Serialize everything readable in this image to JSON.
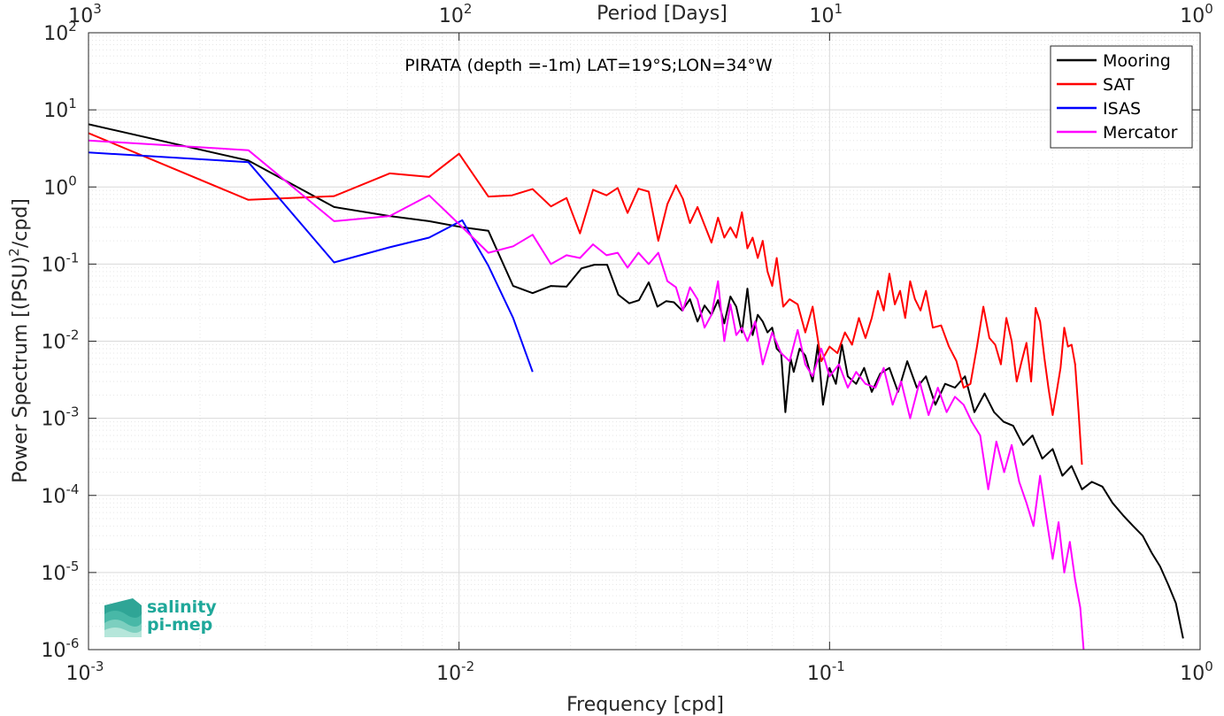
{
  "chart_data": {
    "type": "line",
    "title": "PIRATA (depth =-1m) LAT=19°S;LON=34°W",
    "xlabel": "Frequency [cpd]",
    "ylabel": "Power Spectrum [(PSU)²/cpd]",
    "top_xlabel": "Period [Days]",
    "x_scale": "log",
    "y_scale": "log",
    "xlim": [
      0.001,
      1
    ],
    "ylim": [
      1e-06,
      100
    ],
    "grid": true,
    "legend_position": "top-right",
    "x_ticks": [
      0.001,
      0.01,
      0.1,
      1
    ],
    "x_tick_labels": [
      {
        "base": "10",
        "exp": "-3"
      },
      {
        "base": "10",
        "exp": "-2"
      },
      {
        "base": "10",
        "exp": "-1"
      },
      {
        "base": "10",
        "exp": "0"
      }
    ],
    "top_x_tick_labels": [
      {
        "base": "10",
        "exp": "3"
      },
      {
        "base": "10",
        "exp": "2"
      },
      {
        "base": "10",
        "exp": "1"
      },
      {
        "base": "10",
        "exp": "0"
      }
    ],
    "y_ticks": [
      1e-06,
      1e-05,
      0.0001,
      0.001,
      0.01,
      0.1,
      1,
      10,
      100
    ],
    "y_tick_labels": [
      {
        "base": "10",
        "exp": "-6"
      },
      {
        "base": "10",
        "exp": "-5"
      },
      {
        "base": "10",
        "exp": "-4"
      },
      {
        "base": "10",
        "exp": "-3"
      },
      {
        "base": "10",
        "exp": "-2"
      },
      {
        "base": "10",
        "exp": "-1"
      },
      {
        "base": "10",
        "exp": "0"
      },
      {
        "base": "10",
        "exp": "1"
      },
      {
        "base": "10",
        "exp": "2"
      }
    ],
    "series": [
      {
        "name": "Mooring",
        "color": "#000000",
        "x": [
          0.001,
          0.0027,
          0.0046,
          0.0065,
          0.0083,
          0.0102,
          0.012,
          0.014,
          0.0158,
          0.0177,
          0.0195,
          0.0214,
          0.0232,
          0.0251,
          0.0269,
          0.0288,
          0.0306,
          0.0325,
          0.0343,
          0.0362,
          0.038,
          0.04,
          0.042,
          0.044,
          0.046,
          0.048,
          0.05,
          0.052,
          0.054,
          0.056,
          0.058,
          0.06,
          0.062,
          0.064,
          0.066,
          0.068,
          0.07,
          0.072,
          0.074,
          0.076,
          0.0785,
          0.08,
          0.083,
          0.086,
          0.09,
          0.093,
          0.096,
          0.1,
          0.104,
          0.108,
          0.112,
          0.118,
          0.124,
          0.13,
          0.137,
          0.145,
          0.153,
          0.162,
          0.172,
          0.182,
          0.193,
          0.205,
          0.218,
          0.232,
          0.246,
          0.262,
          0.278,
          0.295,
          0.313,
          0.333,
          0.353,
          0.375,
          0.4,
          0.425,
          0.45,
          0.48,
          0.51,
          0.545,
          0.58,
          0.62,
          0.66,
          0.7,
          0.74,
          0.78,
          0.82,
          0.86,
          0.9
        ],
        "y": [
          6.5,
          2.2,
          0.55,
          0.42,
          0.36,
          0.3,
          0.27,
          0.052,
          0.042,
          0.052,
          0.051,
          0.088,
          0.098,
          0.098,
          0.04,
          0.031,
          0.034,
          0.058,
          0.028,
          0.033,
          0.032,
          0.025,
          0.035,
          0.018,
          0.029,
          0.022,
          0.034,
          0.017,
          0.038,
          0.028,
          0.013,
          0.048,
          0.012,
          0.022,
          0.018,
          0.013,
          0.015,
          0.008,
          0.007,
          0.0012,
          0.006,
          0.004,
          0.008,
          0.0065,
          0.003,
          0.009,
          0.0015,
          0.0045,
          0.0028,
          0.009,
          0.0035,
          0.0028,
          0.0045,
          0.0022,
          0.0038,
          0.0045,
          0.0022,
          0.0055,
          0.0025,
          0.0035,
          0.0015,
          0.0028,
          0.0025,
          0.0035,
          0.0012,
          0.0021,
          0.0012,
          0.0009,
          0.0008,
          0.00045,
          0.0006,
          0.0003,
          0.0004,
          0.00018,
          0.00024,
          0.00012,
          0.00015,
          0.00013,
          8e-05,
          5.5e-05,
          4e-05,
          3e-05,
          1.8e-05,
          1.2e-05,
          7e-06,
          4e-06,
          1.4e-06
        ]
      },
      {
        "name": "SAT",
        "color": "#ff0000",
        "x": [
          0.001,
          0.0027,
          0.0046,
          0.0065,
          0.0083,
          0.01,
          0.012,
          0.0139,
          0.0158,
          0.0177,
          0.0195,
          0.0212,
          0.023,
          0.025,
          0.0268,
          0.0285,
          0.0305,
          0.0325,
          0.0345,
          0.0365,
          0.0385,
          0.0402,
          0.042,
          0.044,
          0.046,
          0.048,
          0.05,
          0.052,
          0.054,
          0.056,
          0.058,
          0.06,
          0.062,
          0.064,
          0.066,
          0.068,
          0.07,
          0.072,
          0.075,
          0.078,
          0.082,
          0.086,
          0.09,
          0.095,
          0.1,
          0.105,
          0.11,
          0.115,
          0.12,
          0.125,
          0.13,
          0.135,
          0.14,
          0.145,
          0.15,
          0.155,
          0.16,
          0.165,
          0.17,
          0.176,
          0.182,
          0.19,
          0.2,
          0.21,
          0.22,
          0.23,
          0.24,
          0.25,
          0.26,
          0.27,
          0.28,
          0.29,
          0.3,
          0.31,
          0.32,
          0.33,
          0.34,
          0.35,
          0.36,
          0.37,
          0.38,
          0.39,
          0.4,
          0.41,
          0.42,
          0.43,
          0.44,
          0.45,
          0.46,
          0.47,
          0.48
        ],
        "y": [
          5.0,
          0.68,
          0.76,
          1.5,
          1.35,
          2.7,
          0.75,
          0.78,
          0.94,
          0.56,
          0.72,
          0.25,
          0.92,
          0.78,
          0.97,
          0.46,
          0.95,
          0.87,
          0.2,
          0.6,
          1.05,
          0.7,
          0.34,
          0.55,
          0.32,
          0.19,
          0.4,
          0.22,
          0.3,
          0.22,
          0.47,
          0.16,
          0.22,
          0.12,
          0.2,
          0.08,
          0.052,
          0.12,
          0.028,
          0.035,
          0.03,
          0.013,
          0.028,
          0.0055,
          0.0085,
          0.007,
          0.013,
          0.009,
          0.02,
          0.011,
          0.02,
          0.045,
          0.025,
          0.075,
          0.03,
          0.045,
          0.02,
          0.06,
          0.035,
          0.025,
          0.045,
          0.015,
          0.016,
          0.0085,
          0.0055,
          0.0025,
          0.0028,
          0.0085,
          0.028,
          0.011,
          0.009,
          0.005,
          0.02,
          0.01,
          0.003,
          0.0055,
          0.0095,
          0.003,
          0.027,
          0.018,
          0.006,
          0.0024,
          0.0011,
          0.0022,
          0.0045,
          0.015,
          0.0085,
          0.009,
          0.005,
          0.0012,
          0.00025
        ]
      },
      {
        "name": "ISAS",
        "color": "#0000ff",
        "x": [
          0.001,
          0.0027,
          0.0046,
          0.0065,
          0.0083,
          0.0102,
          0.012,
          0.014,
          0.0158
        ],
        "y": [
          2.8,
          2.1,
          0.105,
          0.165,
          0.22,
          0.37,
          0.095,
          0.02,
          0.004
        ]
      },
      {
        "name": "Mercator",
        "color": "#ff00ff",
        "x": [
          0.001,
          0.0027,
          0.0046,
          0.0065,
          0.0083,
          0.01,
          0.012,
          0.014,
          0.0158,
          0.0177,
          0.0195,
          0.0212,
          0.023,
          0.025,
          0.0268,
          0.0285,
          0.0305,
          0.0325,
          0.0345,
          0.0365,
          0.0385,
          0.0402,
          0.042,
          0.044,
          0.046,
          0.048,
          0.05,
          0.052,
          0.054,
          0.056,
          0.058,
          0.06,
          0.063,
          0.066,
          0.07,
          0.074,
          0.078,
          0.082,
          0.086,
          0.09,
          0.095,
          0.1,
          0.106,
          0.112,
          0.118,
          0.125,
          0.133,
          0.14,
          0.148,
          0.156,
          0.165,
          0.175,
          0.185,
          0.196,
          0.207,
          0.218,
          0.23,
          0.242,
          0.255,
          0.268,
          0.282,
          0.296,
          0.31,
          0.325,
          0.34,
          0.355,
          0.37,
          0.385,
          0.4,
          0.415,
          0.43,
          0.445,
          0.46,
          0.475,
          0.485
        ],
        "y": [
          4.0,
          3.0,
          0.36,
          0.42,
          0.78,
          0.33,
          0.14,
          0.17,
          0.24,
          0.1,
          0.13,
          0.12,
          0.18,
          0.13,
          0.14,
          0.09,
          0.14,
          0.1,
          0.14,
          0.06,
          0.05,
          0.025,
          0.05,
          0.035,
          0.015,
          0.022,
          0.06,
          0.01,
          0.03,
          0.012,
          0.015,
          0.01,
          0.018,
          0.005,
          0.013,
          0.007,
          0.0055,
          0.014,
          0.005,
          0.0035,
          0.008,
          0.0035,
          0.005,
          0.0025,
          0.004,
          0.0028,
          0.0025,
          0.0045,
          0.0015,
          0.003,
          0.001,
          0.003,
          0.0011,
          0.0025,
          0.0012,
          0.0019,
          0.0015,
          0.0009,
          0.0006,
          0.00012,
          0.0005,
          0.0002,
          0.00045,
          0.00015,
          8e-05,
          4e-05,
          0.00018,
          5e-05,
          1.5e-05,
          4.5e-05,
          1e-05,
          2.5e-05,
          8e-06,
          3.5e-06,
          1e-06
        ]
      }
    ]
  },
  "logo": {
    "line1": "salinity",
    "line2": "pi-mep"
  }
}
